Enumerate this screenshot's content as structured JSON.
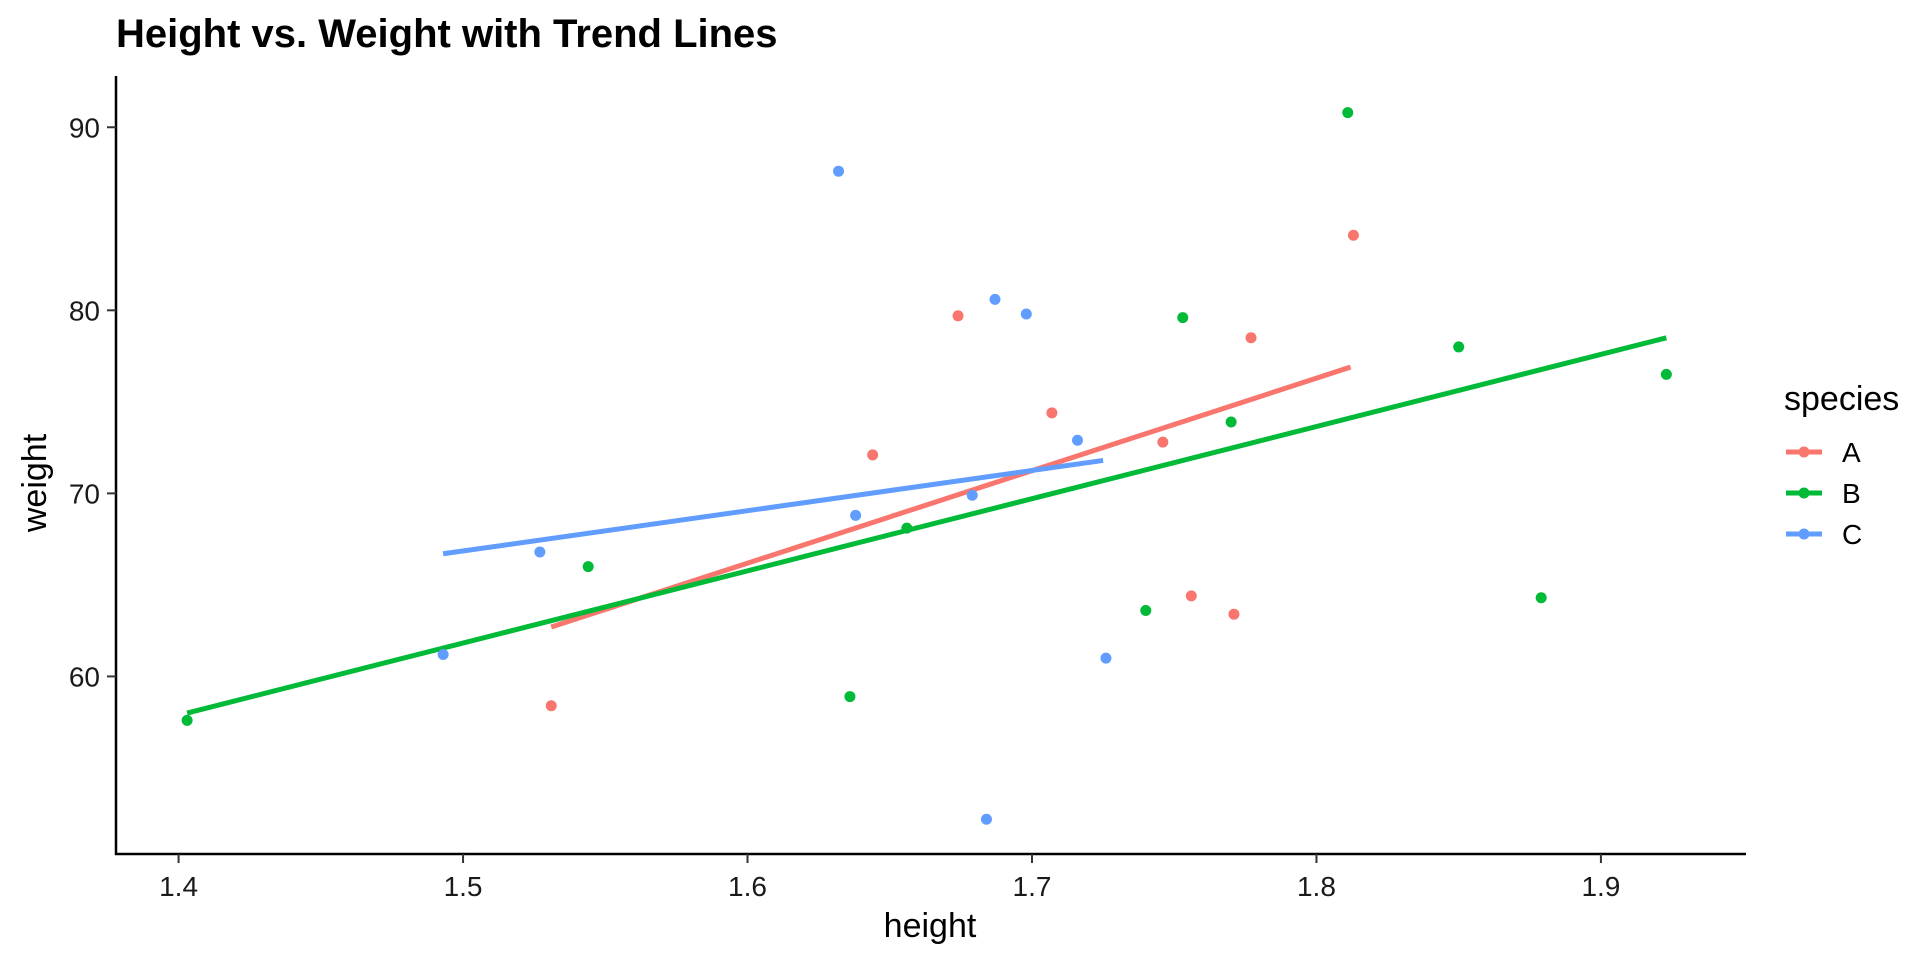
{
  "chart_data": {
    "type": "scatter",
    "title": "Height vs. Weight with Trend Lines",
    "xlabel": "height",
    "ylabel": "weight",
    "xlim": [
      1.378,
      1.951
    ],
    "ylim": [
      50.3,
      92.8
    ],
    "xticks": [
      1.4,
      1.5,
      1.6,
      1.7,
      1.8,
      1.9
    ],
    "xtick_labels": [
      "1.4",
      "1.5",
      "1.6",
      "1.7",
      "1.8",
      "1.9"
    ],
    "yticks": [
      60,
      70,
      80,
      90
    ],
    "ytick_labels": [
      "60",
      "70",
      "80",
      "90"
    ],
    "grid": false,
    "legend": {
      "title": "species",
      "position": "right"
    },
    "series": [
      {
        "name": "A",
        "color": "#F8766D",
        "points": [
          {
            "x": 1.531,
            "y": 58.4
          },
          {
            "x": 1.644,
            "y": 72.1
          },
          {
            "x": 1.674,
            "y": 79.7
          },
          {
            "x": 1.707,
            "y": 74.4
          },
          {
            "x": 1.746,
            "y": 72.8
          },
          {
            "x": 1.756,
            "y": 64.4
          },
          {
            "x": 1.771,
            "y": 63.4
          },
          {
            "x": 1.777,
            "y": 78.5
          },
          {
            "x": 1.813,
            "y": 84.1
          }
        ],
        "trend": [
          {
            "x": 1.531,
            "y": 62.7
          },
          {
            "x": 1.812,
            "y": 76.9
          }
        ]
      },
      {
        "name": "B",
        "color": "#00BA38",
        "points": [
          {
            "x": 1.403,
            "y": 57.6
          },
          {
            "x": 1.544,
            "y": 66.0
          },
          {
            "x": 1.636,
            "y": 58.9
          },
          {
            "x": 1.656,
            "y": 68.1
          },
          {
            "x": 1.74,
            "y": 63.6
          },
          {
            "x": 1.753,
            "y": 79.6
          },
          {
            "x": 1.77,
            "y": 73.9
          },
          {
            "x": 1.811,
            "y": 90.8
          },
          {
            "x": 1.85,
            "y": 78.0
          },
          {
            "x": 1.879,
            "y": 64.3
          },
          {
            "x": 1.923,
            "y": 76.5
          }
        ],
        "trend": [
          {
            "x": 1.403,
            "y": 58.0
          },
          {
            "x": 1.923,
            "y": 78.5
          }
        ]
      },
      {
        "name": "C",
        "color": "#619CFF",
        "points": [
          {
            "x": 1.493,
            "y": 61.2
          },
          {
            "x": 1.527,
            "y": 66.8
          },
          {
            "x": 1.632,
            "y": 87.6
          },
          {
            "x": 1.638,
            "y": 68.8
          },
          {
            "x": 1.679,
            "y": 69.9
          },
          {
            "x": 1.684,
            "y": 52.2
          },
          {
            "x": 1.687,
            "y": 80.6
          },
          {
            "x": 1.698,
            "y": 79.8
          },
          {
            "x": 1.716,
            "y": 72.9
          },
          {
            "x": 1.726,
            "y": 61.0
          }
        ],
        "trend": [
          {
            "x": 1.493,
            "y": 66.7
          },
          {
            "x": 1.725,
            "y": 71.8
          }
        ]
      }
    ]
  }
}
